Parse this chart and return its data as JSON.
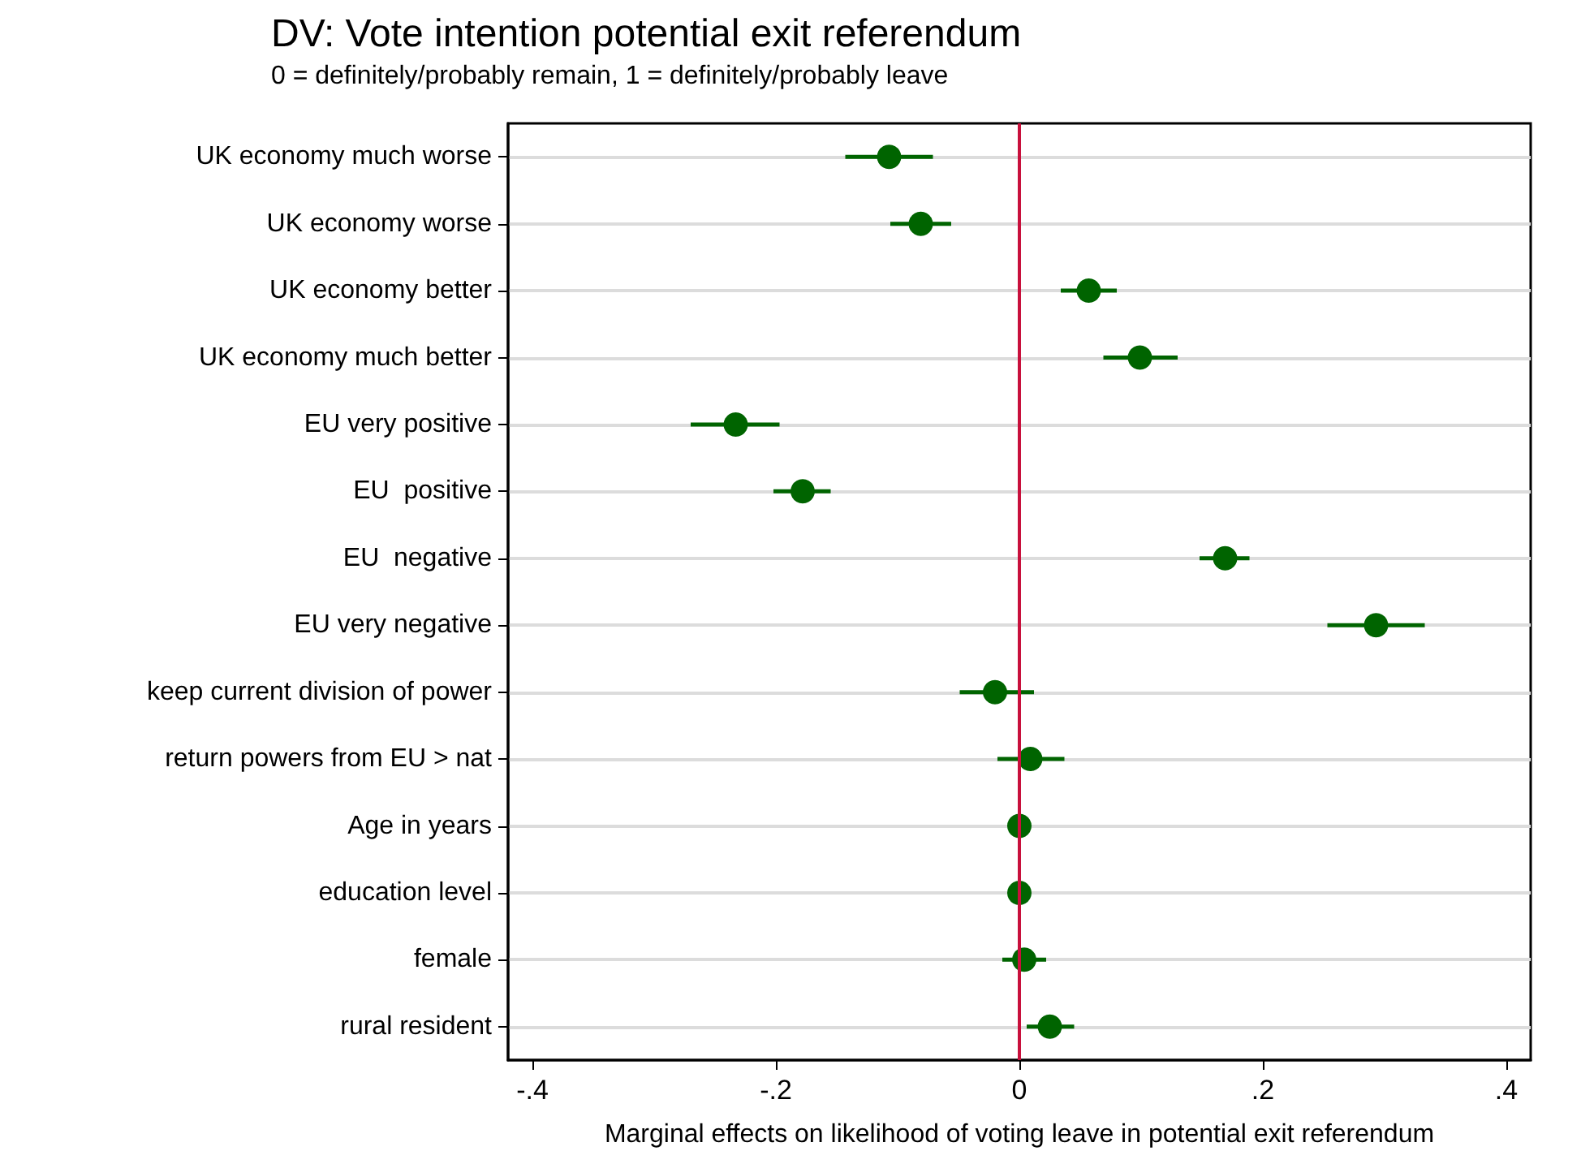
{
  "chart_data": {
    "type": "scatter",
    "title": "DV: Vote intention potential exit referendum",
    "subtitle": "0 = definitely/probably remain, 1 = definitely/probably leave",
    "xlabel": "Marginal effects on likelihood of voting leave in potential exit referendum",
    "orientation": "horizontal",
    "categories": [
      "UK economy much worse",
      "UK economy worse",
      "UK economy better",
      "UK economy much better",
      "EU very positive",
      "EU  positive",
      "EU  negative",
      "EU very negative",
      "keep current division of power",
      "return powers from EU > nat",
      "Age in years",
      "education level",
      "female",
      "rural resident"
    ],
    "series": [
      {
        "color": "#006400",
        "values": [
          -0.107,
          -0.081,
          0.057,
          0.099,
          -0.233,
          -0.178,
          0.169,
          0.293,
          -0.02,
          0.009,
          0,
          0,
          0.004,
          0.025
        ],
        "errors": [
          [
            -0.143,
            -0.071
          ],
          [
            -0.106,
            -0.056
          ],
          [
            0.034,
            0.08
          ],
          [
            0.069,
            0.13
          ],
          [
            -0.27,
            -0.197
          ],
          [
            -0.202,
            -0.155
          ],
          [
            0.148,
            0.189
          ],
          [
            0.253,
            0.333
          ],
          [
            -0.049,
            0.012
          ],
          [
            -0.018,
            0.037
          ],
          null,
          null,
          [
            -0.014,
            0.022
          ],
          [
            0.006,
            0.045
          ]
        ]
      }
    ],
    "xlim": [
      -0.42,
      0.42
    ],
    "xticks": [
      {
        "value": -0.4,
        "label": "-.4"
      },
      {
        "value": -0.2,
        "label": "-.2"
      },
      {
        "value": 0,
        "label": "0"
      },
      {
        "value": 0.2,
        "label": ".2"
      },
      {
        "value": 0.4,
        "label": ".4"
      }
    ],
    "ref_lines": [
      {
        "axis": "x",
        "value": 0,
        "color": "#c8103c"
      }
    ],
    "grid": "y",
    "marker": "circle"
  }
}
